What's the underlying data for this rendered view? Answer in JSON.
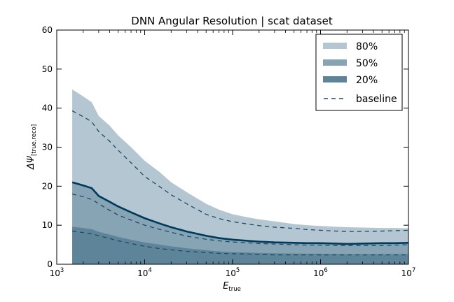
{
  "chart_data": {
    "type": "area",
    "title": "DNN Angular Resolution | scat dataset",
    "xlabel": {
      "main": "E",
      "sub": "true"
    },
    "ylabel": {
      "main": "ΔΨ",
      "sub": "[true,reco]"
    },
    "xscale": "log",
    "xlim": [
      1000,
      10000000
    ],
    "ylim": [
      0,
      60
    ],
    "xticks": [
      {
        "value": 1000,
        "base": "10",
        "exp": "3"
      },
      {
        "value": 10000,
        "base": "10",
        "exp": "4"
      },
      {
        "value": 100000,
        "base": "10",
        "exp": "5"
      },
      {
        "value": 1000000,
        "base": "10",
        "exp": "6"
      },
      {
        "value": 10000000,
        "base": "10",
        "exp": "7"
      }
    ],
    "yticks": [
      0,
      10,
      20,
      30,
      40,
      50,
      60
    ],
    "grid": false,
    "legend_position": "top-right",
    "x": [
      1500,
      2000,
      2500,
      3000,
      4000,
      5000,
      7000,
      10000,
      15000,
      20000,
      30000,
      50000,
      70000,
      100000,
      150000,
      200000,
      300000,
      500000,
      700000,
      1000000,
      1500000,
      2000000,
      3000000,
      5000000,
      7000000,
      10000000
    ],
    "series": [
      {
        "name": "80%",
        "role": "band",
        "color": "#b3c6d1",
        "values": [
          44.8,
          43,
          41.5,
          38,
          35.5,
          33,
          30,
          26.5,
          23.5,
          21,
          18.5,
          15.5,
          14,
          12.8,
          12,
          11.5,
          11,
          10.3,
          10,
          9.8,
          9.6,
          9.5,
          9.4,
          9.3,
          9.3,
          9.2
        ]
      },
      {
        "name": "50%",
        "role": "band",
        "color": "#86a4b4",
        "values": [
          21,
          20.2,
          19.5,
          17.5,
          16,
          14.8,
          13.3,
          11.8,
          10.4,
          9.5,
          8.4,
          7.3,
          6.7,
          6.3,
          6.0,
          5.8,
          5.6,
          5.5,
          5.4,
          5.4,
          5.3,
          5.2,
          5.3,
          5.4,
          5.4,
          5.5
        ]
      },
      {
        "name": "20%",
        "role": "band",
        "color": "#5d8499",
        "values": [
          9.6,
          9.3,
          9.0,
          8.3,
          7.6,
          7.0,
          6.3,
          5.6,
          5.0,
          4.6,
          4.1,
          3.6,
          3.3,
          3.1,
          3.0,
          2.9,
          2.8,
          2.75,
          2.7,
          2.7,
          2.65,
          2.6,
          2.6,
          2.6,
          2.6,
          2.6
        ]
      },
      {
        "name": "baseline",
        "role": "dashed",
        "color": "#1e4a63",
        "curves": [
          [
            39.3,
            37.8,
            36.5,
            34.0,
            31.5,
            29.2,
            26.0,
            22.5,
            19.8,
            17.8,
            15.5,
            12.8,
            11.7,
            10.9,
            10.3,
            9.9,
            9.5,
            9.2,
            8.9,
            8.7,
            8.5,
            8.4,
            8.4,
            8.5,
            8.6,
            8.7
          ],
          [
            18.0,
            17.3,
            16.6,
            15.5,
            13.8,
            12.6,
            11.3,
            10.0,
            8.9,
            8.2,
            7.2,
            6.4,
            6.0,
            5.7,
            5.5,
            5.3,
            5.2,
            5.0,
            4.9,
            4.9,
            4.8,
            4.8,
            4.8,
            4.8,
            4.9,
            5.0
          ],
          [
            8.5,
            8.1,
            7.8,
            7.3,
            6.6,
            6.0,
            5.3,
            4.6,
            4.0,
            3.7,
            3.3,
            3.0,
            2.8,
            2.7,
            2.6,
            2.5,
            2.4,
            2.4,
            2.4,
            2.4,
            2.4,
            2.4,
            2.4,
            2.4,
            2.4,
            2.4
          ]
        ]
      }
    ],
    "median_line": {
      "color": "#003a5a",
      "values": [
        21,
        20.2,
        19.5,
        17.5,
        16,
        14.8,
        13.3,
        11.8,
        10.4,
        9.5,
        8.4,
        7.3,
        6.7,
        6.3,
        6.0,
        5.8,
        5.6,
        5.5,
        5.4,
        5.4,
        5.3,
        5.2,
        5.3,
        5.4,
        5.4,
        5.5
      ]
    }
  }
}
